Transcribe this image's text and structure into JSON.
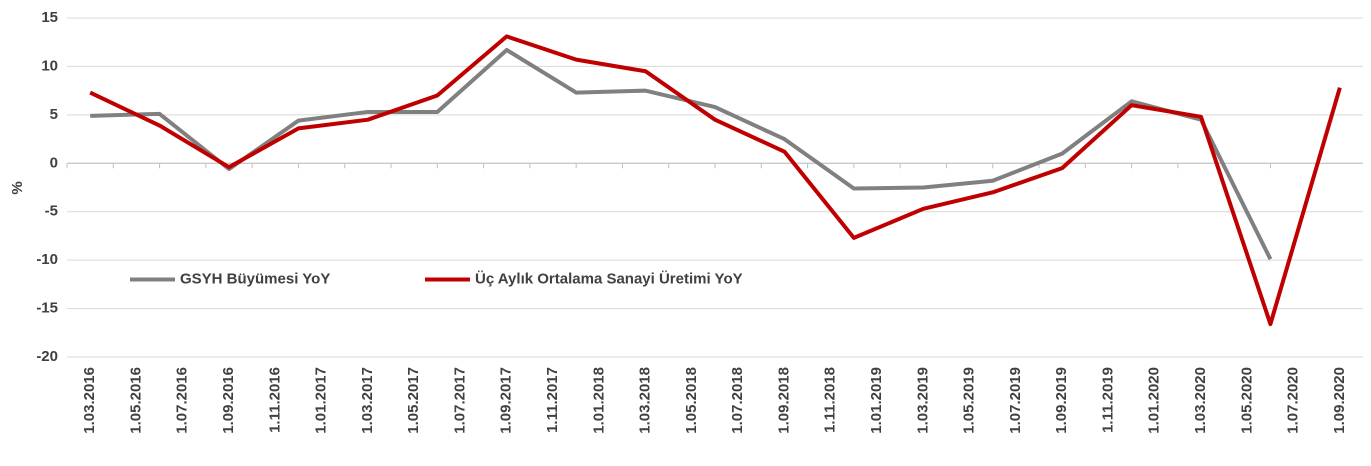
{
  "chart_data": {
    "type": "line",
    "y_label": "%",
    "categories": [
      "1.03.2016",
      "1.05.2016",
      "1.07.2016",
      "1.09.2016",
      "1.11.2016",
      "1.01.2017",
      "1.03.2017",
      "1.05.2017",
      "1.07.2017",
      "1.09.2017",
      "1.11.2017",
      "1.01.2018",
      "1.03.2018",
      "1.05.2018",
      "1.07.2018",
      "1.09.2018",
      "1.11.2018",
      "1.01.2019",
      "1.03.2019",
      "1.05.2019",
      "1.07.2019",
      "1.09.2019",
      "1.11.2019",
      "1.01.2020",
      "1.03.2020",
      "1.05.2020",
      "1.07.2020",
      "1.09.2020"
    ],
    "x": [
      "1.03.2016",
      "1.06.2016",
      "1.09.2016",
      "1.12.2016",
      "1.03.2017",
      "1.06.2017",
      "1.09.2017",
      "1.12.2017",
      "1.03.2018",
      "1.06.2018",
      "1.09.2018",
      "1.12.2018",
      "1.03.2019",
      "1.06.2019",
      "1.09.2019",
      "1.12.2019",
      "1.03.2020",
      "1.06.2020",
      "1.09.2020"
    ],
    "series": [
      {
        "name": "GSYH Büyümesi YoY",
        "color": "#808080",
        "values": [
          4.9,
          5.1,
          -0.6,
          4.4,
          5.3,
          5.3,
          11.7,
          7.3,
          7.5,
          5.8,
          2.5,
          -2.6,
          -2.5,
          -1.8,
          1.0,
          6.4,
          4.5,
          -9.9,
          null
        ]
      },
      {
        "name": "Üç Aylık Ortalama Sanayi Üretimi YoY",
        "color": "#c00000",
        "values": [
          7.3,
          3.9,
          -0.4,
          3.6,
          4.5,
          7.0,
          13.1,
          10.7,
          9.5,
          4.5,
          1.2,
          -7.7,
          -4.7,
          -3.0,
          -0.5,
          6.0,
          4.8,
          -16.6,
          7.8
        ]
      }
    ],
    "ylim": [
      -20,
      15
    ],
    "yticks": [
      -20,
      -15,
      -10,
      -5,
      0,
      5,
      10,
      15
    ],
    "grid": true,
    "legend": "inside-lower-left"
  }
}
